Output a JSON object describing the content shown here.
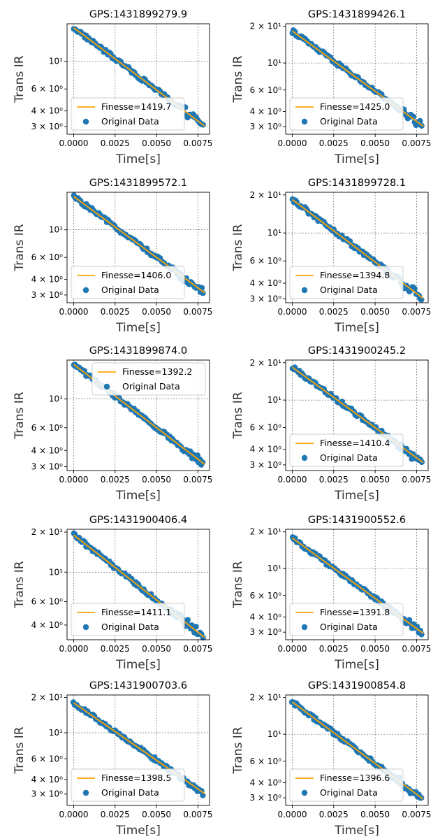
{
  "figure": {
    "xlabel": "Time[s]",
    "ylabel": "Trans IR",
    "x_ticks": [
      "0.0000",
      "0.0025",
      "0.0050",
      "0.0075"
    ],
    "legend_fit_prefix": "Finesse=",
    "legend_data_label": "Original Data",
    "colors": {
      "fit": "#ffa500",
      "data": "#1f77b4",
      "grid": "#555555"
    }
  },
  "chart_data": [
    {
      "type": "scatter",
      "title": "GPS:1431899279.9",
      "finesse": "1419.7",
      "y_start": 18.6,
      "y_end": 3.1,
      "ylim": [
        2.6,
        20.0
      ],
      "yscale": "log",
      "xlim": [
        -0.0004,
        0.0082
      ],
      "legend_loc": "lower left",
      "y_ticks": [
        {
          "v": 3,
          "t": "3 × 10⁰"
        },
        {
          "v": 4,
          "t": "4 × 10⁰"
        },
        {
          "v": 6,
          "t": "6 × 10⁰"
        },
        {
          "v": 10,
          "t": "10¹"
        }
      ],
      "grid": true
    },
    {
      "type": "scatter",
      "title": "GPS:1431899426.1",
      "finesse": "1425.0",
      "y_start": 18.3,
      "y_end": 3.1,
      "ylim": [
        2.6,
        21.0
      ],
      "yscale": "log",
      "xlim": [
        -0.0004,
        0.0082
      ],
      "legend_loc": "lower left",
      "y_ticks": [
        {
          "v": 3,
          "t": "3 × 10⁰"
        },
        {
          "v": 4,
          "t": "4 × 10⁰"
        },
        {
          "v": 6,
          "t": "6 × 10⁰"
        },
        {
          "v": 10,
          "t": "10¹"
        },
        {
          "v": 20,
          "t": "2 × 10¹"
        }
      ],
      "grid": true
    },
    {
      "type": "scatter",
      "title": "GPS:1431899572.1",
      "finesse": "1406.0",
      "y_start": 18.5,
      "y_end": 3.2,
      "ylim": [
        2.6,
        20.0
      ],
      "yscale": "log",
      "xlim": [
        -0.0004,
        0.0082
      ],
      "legend_loc": "lower left",
      "y_ticks": [
        {
          "v": 3,
          "t": "3 × 10⁰"
        },
        {
          "v": 4,
          "t": "4 × 10⁰"
        },
        {
          "v": 6,
          "t": "6 × 10⁰"
        },
        {
          "v": 10,
          "t": "10¹"
        }
      ],
      "grid": true
    },
    {
      "type": "scatter",
      "title": "GPS:1431899728.1",
      "finesse": "1394.8",
      "y_start": 18.4,
      "y_end": 3.1,
      "ylim": [
        2.8,
        21.0
      ],
      "yscale": "log",
      "xlim": [
        -0.0004,
        0.0082
      ],
      "legend_loc": "lower left",
      "y_ticks": [
        {
          "v": 3,
          "t": "3 × 10⁰"
        },
        {
          "v": 4,
          "t": "4 × 10⁰"
        },
        {
          "v": 6,
          "t": "6 × 10⁰"
        },
        {
          "v": 10,
          "t": "10¹"
        },
        {
          "v": 20,
          "t": "2 × 10¹"
        }
      ],
      "grid": true
    },
    {
      "type": "scatter",
      "title": "GPS:1431899874.0",
      "finesse": "1392.2",
      "y_start": 18.5,
      "y_end": 3.2,
      "ylim": [
        2.8,
        20.0
      ],
      "yscale": "log",
      "xlim": [
        -0.0004,
        0.0082
      ],
      "legend_loc": "upper right",
      "y_ticks": [
        {
          "v": 3,
          "t": "3 × 10⁰"
        },
        {
          "v": 4,
          "t": "4 × 10⁰"
        },
        {
          "v": 6,
          "t": "6 × 10⁰"
        },
        {
          "v": 10,
          "t": "10¹"
        }
      ],
      "grid": true
    },
    {
      "type": "scatter",
      "title": "GPS:1431900245.2",
      "finesse": "1410.4",
      "y_start": 18.4,
      "y_end": 3.2,
      "ylim": [
        2.7,
        21.0
      ],
      "yscale": "log",
      "xlim": [
        -0.0004,
        0.0082
      ],
      "legend_loc": "lower left",
      "y_ticks": [
        {
          "v": 3,
          "t": "3 × 10⁰"
        },
        {
          "v": 4,
          "t": "4 × 10⁰"
        },
        {
          "v": 6,
          "t": "6 × 10⁰"
        },
        {
          "v": 10,
          "t": "10¹"
        },
        {
          "v": 20,
          "t": "2 × 10¹"
        }
      ],
      "grid": true
    },
    {
      "type": "scatter",
      "title": "GPS:1431900406.4",
      "finesse": "1411.1",
      "y_start": 19.0,
      "y_end": 3.3,
      "ylim": [
        3.1,
        21.0
      ],
      "yscale": "log",
      "xlim": [
        -0.0004,
        0.0082
      ],
      "legend_loc": "lower left",
      "y_ticks": [
        {
          "v": 4,
          "t": "4 × 10⁰"
        },
        {
          "v": 6,
          "t": "6 × 10⁰"
        },
        {
          "v": 10,
          "t": "10¹"
        },
        {
          "v": 20,
          "t": "2 × 10¹"
        }
      ],
      "grid": true
    },
    {
      "type": "scatter",
      "title": "GPS:1431900552.6",
      "finesse": "1391.8",
      "y_start": 17.8,
      "y_end": 3.0,
      "ylim": [
        2.6,
        21.0
      ],
      "yscale": "log",
      "xlim": [
        -0.0004,
        0.0082
      ],
      "legend_loc": "lower left",
      "y_ticks": [
        {
          "v": 3,
          "t": "3 × 10⁰"
        },
        {
          "v": 4,
          "t": "4 × 10⁰"
        },
        {
          "v": 6,
          "t": "6 × 10⁰"
        },
        {
          "v": 10,
          "t": "10¹"
        },
        {
          "v": 20,
          "t": "2 × 10¹"
        }
      ],
      "grid": true
    },
    {
      "type": "scatter",
      "title": "GPS:1431900703.6",
      "finesse": "1398.5",
      "y_start": 18.0,
      "y_end": 3.1,
      "ylim": [
        2.4,
        21.0
      ],
      "yscale": "log",
      "xlim": [
        -0.0004,
        0.0082
      ],
      "legend_loc": "lower left",
      "y_ticks": [
        {
          "v": 3,
          "t": "3 × 10⁰"
        },
        {
          "v": 4,
          "t": "4 × 10⁰"
        },
        {
          "v": 6,
          "t": "6 × 10⁰"
        },
        {
          "v": 10,
          "t": "10¹"
        },
        {
          "v": 20,
          "t": "2 × 10¹"
        }
      ],
      "grid": true
    },
    {
      "type": "scatter",
      "title": "GPS:1431900854.8",
      "finesse": "1396.6",
      "y_start": 18.4,
      "y_end": 3.0,
      "ylim": [
        2.6,
        21.0
      ],
      "yscale": "log",
      "xlim": [
        -0.0004,
        0.0082
      ],
      "legend_loc": "lower left",
      "y_ticks": [
        {
          "v": 3,
          "t": "3 × 10⁰"
        },
        {
          "v": 4,
          "t": "4 × 10⁰"
        },
        {
          "v": 6,
          "t": "6 × 10⁰"
        },
        {
          "v": 10,
          "t": "10¹"
        },
        {
          "v": 20,
          "t": "2 × 10¹"
        }
      ],
      "grid": true
    }
  ]
}
